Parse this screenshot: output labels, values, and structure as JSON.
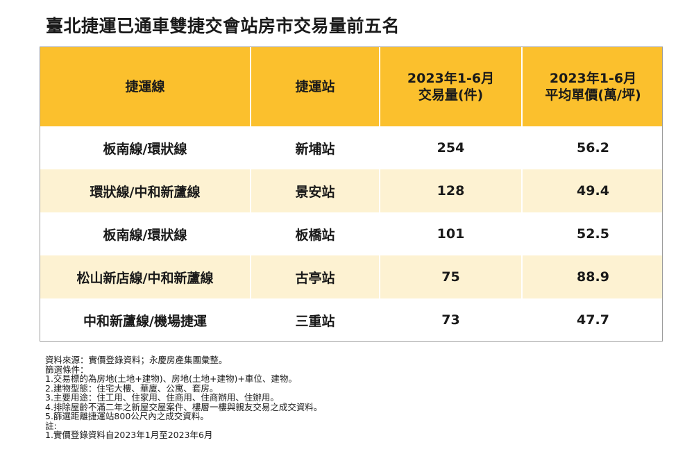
{
  "title": "臺北捷運已通車雙捷交會站房市交易量前五名",
  "table": {
    "headers": {
      "line": "捷運線",
      "station": "捷運站",
      "volume_line1": "2023年1-6月",
      "volume_line2": "交易量(件)",
      "price_line1": "2023年1-6月",
      "price_line2": "平均單價(萬/坪)"
    },
    "rows": [
      {
        "line": "板南線/環狀線",
        "station": "新埔站",
        "volume": "254",
        "price": "56.2"
      },
      {
        "line": "環狀線/中和新蘆線",
        "station": "景安站",
        "volume": "128",
        "price": "49.4"
      },
      {
        "line": "板南線/環狀線",
        "station": "板橋站",
        "volume": "101",
        "price": "52.5"
      },
      {
        "line": "松山新店線/中和新蘆線",
        "station": "古亭站",
        "volume": "75",
        "price": "88.9"
      },
      {
        "line": "中和新蘆線/機場捷運",
        "station": "三重站",
        "volume": "73",
        "price": "47.7"
      }
    ]
  },
  "notes": [
    "資料來源：實價登錄資料；永慶房產集團彙整。",
    "篩選條件：",
    "1.交易標的為房地(土地+建物)、房地(土地+建物)+車位、建物。",
    "2.建物型態：住宅大樓、華廈、公寓、套房。",
    "3.主要用途：住工用、住家用、住商用、住商辦用、住辦用。",
    "4.排除屋齡不滿二年之新屋交屋案件、樓層一樓與親友交易之成交資料。",
    "5.篩選距離捷運站800公尺內之成交資料。",
    "註:",
    "1.實價登錄資料自2023年1月至2023年6月"
  ],
  "colors": {
    "header_bg": "#fbc02d",
    "row_alt_bg": "#fdf2d2",
    "row_bg": "#ffffff"
  }
}
